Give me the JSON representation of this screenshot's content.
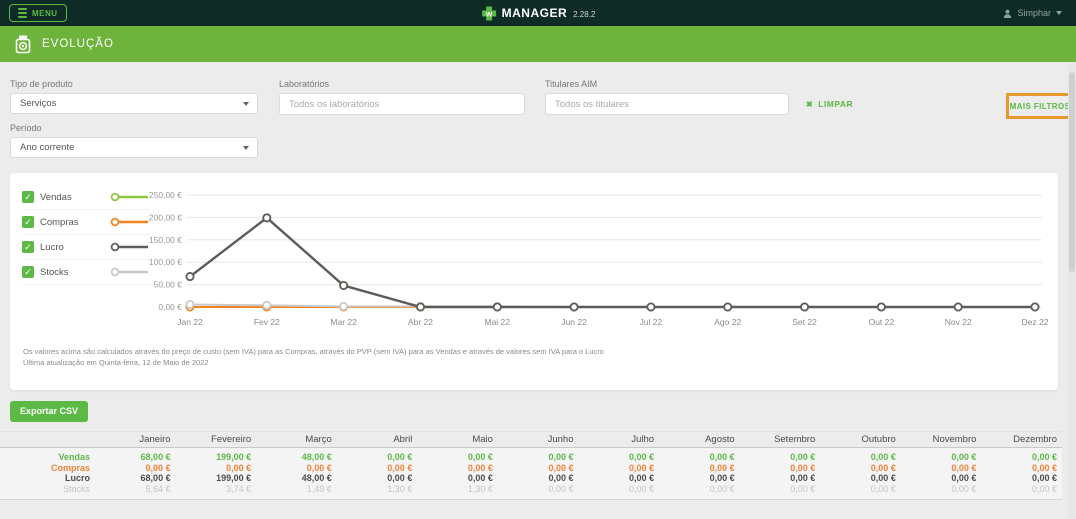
{
  "topbar": {
    "menu_label": "MENU",
    "brand": "MANAGER",
    "version": "2.28.2",
    "user": "Simphar"
  },
  "title_bar": {
    "title": "EVOLUÇÃO"
  },
  "filters": {
    "tipo_label": "Tipo de produto",
    "tipo_value": "Serviços",
    "lab_label": "Laboratórios",
    "lab_placeholder": "Todos os laboratórios",
    "tit_label": "Titulares AIM",
    "tit_placeholder": "Todos os titulares",
    "periodo_label": "Período",
    "periodo_value": "Ano corrente",
    "limpar_label": "LIMPAR",
    "limpar_icon": "✖",
    "mais_filtros_label": "MAIS FILTROS"
  },
  "colors": {
    "accent_green": "#5cb946",
    "bar_green": "#6db33c",
    "header_dark": "#0f2b26",
    "highlight_orange": "#e6992e",
    "vendas": "#5cb946",
    "compras": "#f0823c",
    "lucro": "#4d4d4d",
    "stocks": "#c4c4c4"
  },
  "legend": [
    {
      "label": "Vendas",
      "color": "#8dc63f",
      "checked": true
    },
    {
      "label": "Compras",
      "color": "#f58220",
      "checked": true
    },
    {
      "label": "Lucro",
      "color": "#5b5d5a",
      "checked": true
    },
    {
      "label": "Stocks",
      "color": "#c9c9c9",
      "checked": true
    }
  ],
  "chart_data": {
    "type": "line",
    "x": [
      "Jan 22",
      "Fev 22",
      "Mar 22",
      "Abr 22",
      "Mai 22",
      "Jun 22",
      "Jul 22",
      "Ago 22",
      "Set 22",
      "Out 22",
      "Nov 22",
      "Dez 22"
    ],
    "series": [
      {
        "name": "Vendas",
        "color": "#8dc63f",
        "width": 2,
        "values": [
          68,
          199,
          48,
          0,
          0,
          0,
          0,
          0,
          0,
          0,
          0,
          0
        ]
      },
      {
        "name": "Compras",
        "color": "#f58220",
        "width": 2,
        "values": [
          0,
          0,
          0,
          0,
          0,
          0,
          0,
          0,
          0,
          0,
          0,
          0
        ]
      },
      {
        "name": "Stocks",
        "color": "#c9c9c9",
        "width": 2,
        "values": [
          5.64,
          3.74,
          1.49,
          1.3,
          1.3,
          0,
          0,
          0,
          0,
          0,
          0,
          0
        ]
      },
      {
        "name": "Lucro",
        "color": "#5b5d5a",
        "width": 2.4,
        "values": [
          68,
          199,
          48,
          0,
          0,
          0,
          0,
          0,
          0,
          0,
          0,
          0
        ]
      }
    ],
    "yticks": [
      {
        "label": "0,00 €",
        "value": 0
      },
      {
        "label": "50,00 €",
        "value": 50
      },
      {
        "label": "100,00 €",
        "value": 100
      },
      {
        "label": "150,00 €",
        "value": 150
      },
      {
        "label": "200,00 €",
        "value": 200
      },
      {
        "label": "250,00 €",
        "value": 250
      }
    ],
    "ylim": [
      0,
      250
    ],
    "grid": true,
    "legend_position": "left"
  },
  "footnote": {
    "line1": "Os valores acima são calculados através do preço de custo (sem IVA) para as Compras, através do PVP (sem IVA) para as Vendas e através de valores sem IVA para o Lucro",
    "line2": "Última atualização em Quinta-feira, 12 de Maio de 2022"
  },
  "export_button": "Exportar CSV",
  "table": {
    "months": [
      "Janeiro",
      "Fevereiro",
      "Março",
      "Abril",
      "Maio",
      "Junho",
      "Julho",
      "Agosto",
      "Setembro",
      "Outubro",
      "Novembro",
      "Dezembro"
    ],
    "rows": [
      {
        "label": "Vendas",
        "color": "#5cb946",
        "bold": true,
        "values": [
          "68,00 €",
          "199,00 €",
          "48,00 €",
          "0,00 €",
          "0,00 €",
          "0,00 €",
          "0,00 €",
          "0,00 €",
          "0,00 €",
          "0,00 €",
          "0,00 €",
          "0,00 €"
        ]
      },
      {
        "label": "Compras",
        "color": "#f0823c",
        "bold": true,
        "values": [
          "0,00 €",
          "0,00 €",
          "0,00 €",
          "0,00 €",
          "0,00 €",
          "0,00 €",
          "0,00 €",
          "0,00 €",
          "0,00 €",
          "0,00 €",
          "0,00 €",
          "0,00 €"
        ]
      },
      {
        "label": "Lucro",
        "color": "#4d4d4d",
        "bold": true,
        "values": [
          "68,00 €",
          "199,00 €",
          "48,00 €",
          "0,00 €",
          "0,00 €",
          "0,00 €",
          "0,00 €",
          "0,00 €",
          "0,00 €",
          "0,00 €",
          "0,00 €",
          "0,00 €"
        ]
      },
      {
        "label": "Stocks",
        "color": "#c4c4c4",
        "bold": false,
        "values": [
          "5,64 €",
          "3,74 €",
          "1,49 €",
          "1,30 €",
          "1,30 €",
          "0,00 €",
          "0,00 €",
          "0,00 €",
          "0,00 €",
          "0,00 €",
          "0,00 €",
          "0,00 €"
        ]
      }
    ]
  }
}
